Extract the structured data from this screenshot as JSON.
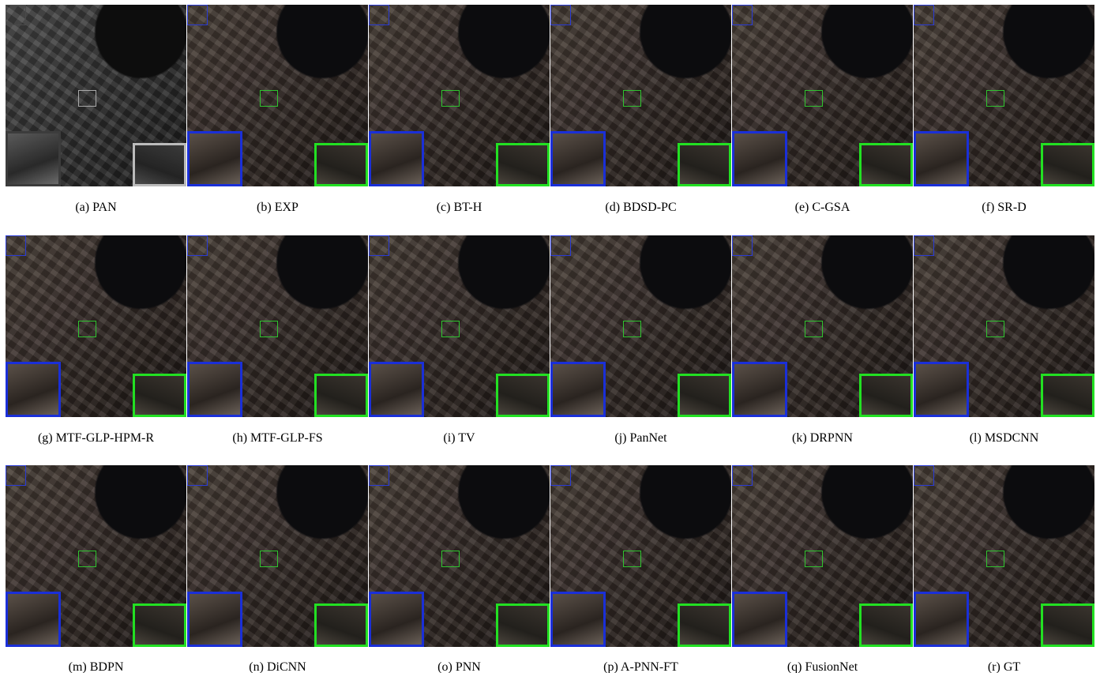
{
  "panels": [
    {
      "label": "(a) PAN"
    },
    {
      "label": "(b) EXP"
    },
    {
      "label": "(c) BT-H"
    },
    {
      "label": "(d) BDSD-PC"
    },
    {
      "label": "(e) C-GSA"
    },
    {
      "label": "(f) SR-D"
    },
    {
      "label": "(g) MTF-GLP-HPM-R"
    },
    {
      "label": "(h) MTF-GLP-FS"
    },
    {
      "label": "(i) TV"
    },
    {
      "label": "(j) PanNet"
    },
    {
      "label": "(k) DRPNN"
    },
    {
      "label": "(l) MSDCNN"
    },
    {
      "label": "(m) BDPN"
    },
    {
      "label": "(n) DiCNN"
    },
    {
      "label": "(o) PNN"
    },
    {
      "label": "(p) A-PNN-FT"
    },
    {
      "label": "(q) FusionNet"
    },
    {
      "label": "(r) GT"
    }
  ]
}
